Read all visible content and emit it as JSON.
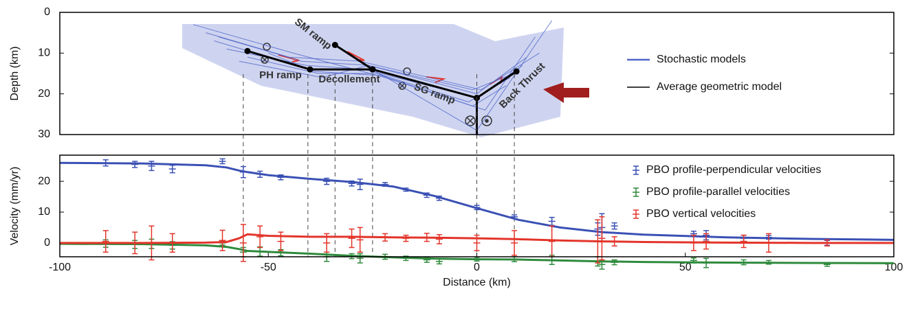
{
  "chart_data": [
    {
      "type": "fault-geometry",
      "y_label": "Depth (km)",
      "xlim": [
        -100,
        100
      ],
      "ylim": [
        0,
        30
      ],
      "yticks": [
        0,
        10,
        20,
        30
      ],
      "y_inverted": true,
      "stochastic": {
        "name": "Stochastic models",
        "color": "#5065c8",
        "lines": [
          {
            "x": [
              -62,
              -42,
              -26,
              0,
              12
            ],
            "y": [
              6,
              12,
              13,
              20,
              11
            ]
          },
          {
            "x": [
              -55,
              -38,
              -24,
              -2,
              8
            ],
            "y": [
              11,
              15,
              15,
              22,
              16
            ]
          },
          {
            "x": [
              -65,
              -45,
              -28,
              1,
              15
            ],
            "y": [
              5,
              11,
              12,
              19,
              10
            ]
          },
          {
            "x": [
              -50,
              -39,
              -23,
              -1,
              7
            ],
            "y": [
              10,
              14.5,
              15.5,
              23,
              18
            ]
          },
          {
            "x": [
              -60,
              -41,
              -27,
              0,
              11
            ],
            "y": [
              9,
              13,
              14,
              21,
              13
            ]
          },
          {
            "x": [
              -68,
              -44,
              -22,
              2,
              14
            ],
            "y": [
              3,
              10,
              16,
              24,
              6
            ]
          },
          {
            "x": [
              -57,
              -37,
              -26,
              -1,
              9
            ],
            "y": [
              12,
              16,
              13,
              19,
              15
            ]
          },
          {
            "x": [
              -63,
              -40,
              -25,
              0,
              18
            ],
            "y": [
              7,
              14,
              14,
              29,
              2
            ]
          }
        ]
      },
      "average": {
        "name": "Average geometric model",
        "color": "#000000",
        "segments": [
          {
            "x": [
              -55,
              -40,
              -25,
              0,
              0
            ],
            "y": [
              9.5,
              14,
              14,
              21,
              30
            ]
          },
          {
            "x": [
              -34,
              -25
            ],
            "y": [
              8,
              14
            ]
          },
          {
            "x": [
              0,
              9.5
            ],
            "y": [
              21,
              14.5
            ]
          }
        ]
      },
      "annotations": [
        "SM ramp",
        "PH ramp",
        "Décollement",
        "SG ramp",
        "Back Thrust"
      ]
    },
    {
      "type": "errorbar",
      "x_label": "Distance (km)",
      "y_label": "Velocity (mm/yr)",
      "xlim": [
        -100,
        100
      ],
      "ylim": [
        -4.5,
        28.5
      ],
      "xticks": [
        -100,
        -50,
        0,
        50,
        100
      ],
      "yticks": [
        0,
        10,
        20
      ],
      "vlines": [
        -56,
        -40.5,
        -34,
        -25,
        0,
        9
      ],
      "x": [
        -89,
        -82,
        -78,
        -73,
        -61,
        -56,
        -52,
        -47,
        -36,
        -30,
        -28,
        -22,
        -17,
        -12,
        -9,
        0,
        9,
        18,
        29,
        30,
        33,
        52,
        55,
        64,
        70,
        84
      ],
      "model_x": [
        -100,
        -80,
        -65,
        -60,
        -57,
        -55,
        -50,
        -40,
        -30,
        -20,
        -10,
        0,
        10,
        20,
        30,
        40,
        60,
        80,
        100
      ],
      "series": [
        {
          "name": "PBO profile-perpendicular velocities",
          "color": "#3a50b4",
          "values": [
            26,
            25.5,
            25,
            24,
            26.5,
            23,
            22.3,
            21.3,
            20,
            19.3,
            19,
            19,
            17.3,
            15.5,
            14.5,
            11.5,
            8.5,
            7,
            4.5,
            5,
            5.5,
            3,
            2.5,
            1.5,
            1.8,
            0
          ],
          "errors": [
            1,
            1,
            1.5,
            1.2,
            0.8,
            1.8,
            1,
            0.8,
            1,
            0.8,
            1.7,
            0.6,
            0.5,
            0.7,
            0.7,
            0.7,
            0.6,
            1.3,
            2,
            4.5,
            1,
            0.8,
            1.5,
            1,
            0.6,
            0.8
          ],
          "model_values": [
            26,
            25.8,
            25.2,
            24.5,
            23.5,
            23,
            22,
            20.8,
            19.8,
            18.3,
            15.2,
            11.3,
            7.5,
            5,
            3.5,
            2.7,
            1.8,
            1.3,
            1
          ]
        },
        {
          "name": "PBO profile-parallel velocities",
          "color": "#2e8a3c",
          "values": [
            -0.2,
            -0.5,
            -0.3,
            -0.8,
            0,
            -3,
            -2.8,
            -3.2,
            -4.5,
            -4.3,
            -5,
            -4.5,
            -5,
            -5.5,
            -6,
            -5.3,
            -5.3,
            -5.5,
            -6,
            -7,
            -6.3,
            -5.7,
            -6.5,
            -6.3,
            -6.3,
            -7
          ],
          "errors": [
            1.2,
            1.3,
            1.5,
            1.2,
            0.7,
            1.5,
            1.5,
            1,
            1.5,
            0.8,
            1.5,
            0.8,
            0.7,
            0.8,
            0.8,
            0.6,
            0.8,
            1.5,
            1.5,
            1.5,
            0.8,
            0.8,
            1.5,
            0.8,
            0.6,
            0.6
          ],
          "model_values": [
            -0.3,
            -0.4,
            -0.8,
            -1.3,
            -2,
            -2.6,
            -2.9,
            -3.5,
            -4.2,
            -4.7,
            -5.1,
            -5.3,
            -5.4,
            -5.7,
            -6,
            -6.2,
            -6.4,
            -6.5,
            -6.6
          ]
        },
        {
          "name": "PBO vertical velocities",
          "color": "#e3342a",
          "values": [
            0.5,
            0,
            0,
            0,
            0.8,
            0,
            2,
            0.5,
            0,
            1.5,
            1,
            1.8,
            1.5,
            1.8,
            1.2,
            0,
            0,
            0.5,
            0.5,
            1.5,
            0.5,
            0,
            0.5,
            0.5,
            0,
            0
          ],
          "errors": [
            3.5,
            3.5,
            5.5,
            3,
            3.3,
            6,
            3.5,
            3,
            3,
            3,
            4,
            1.2,
            1,
            1.3,
            1.5,
            2.5,
            4,
            5,
            7,
            7,
            1.5,
            2.5,
            2.5,
            2,
            3,
            1
          ],
          "model_values": [
            0,
            0,
            0.1,
            0.3,
            1.5,
            2.8,
            2.3,
            2,
            2,
            1.8,
            1.7,
            1.5,
            1.2,
            0.8,
            0.5,
            0.3,
            0.1,
            0,
            0
          ]
        }
      ]
    }
  ]
}
